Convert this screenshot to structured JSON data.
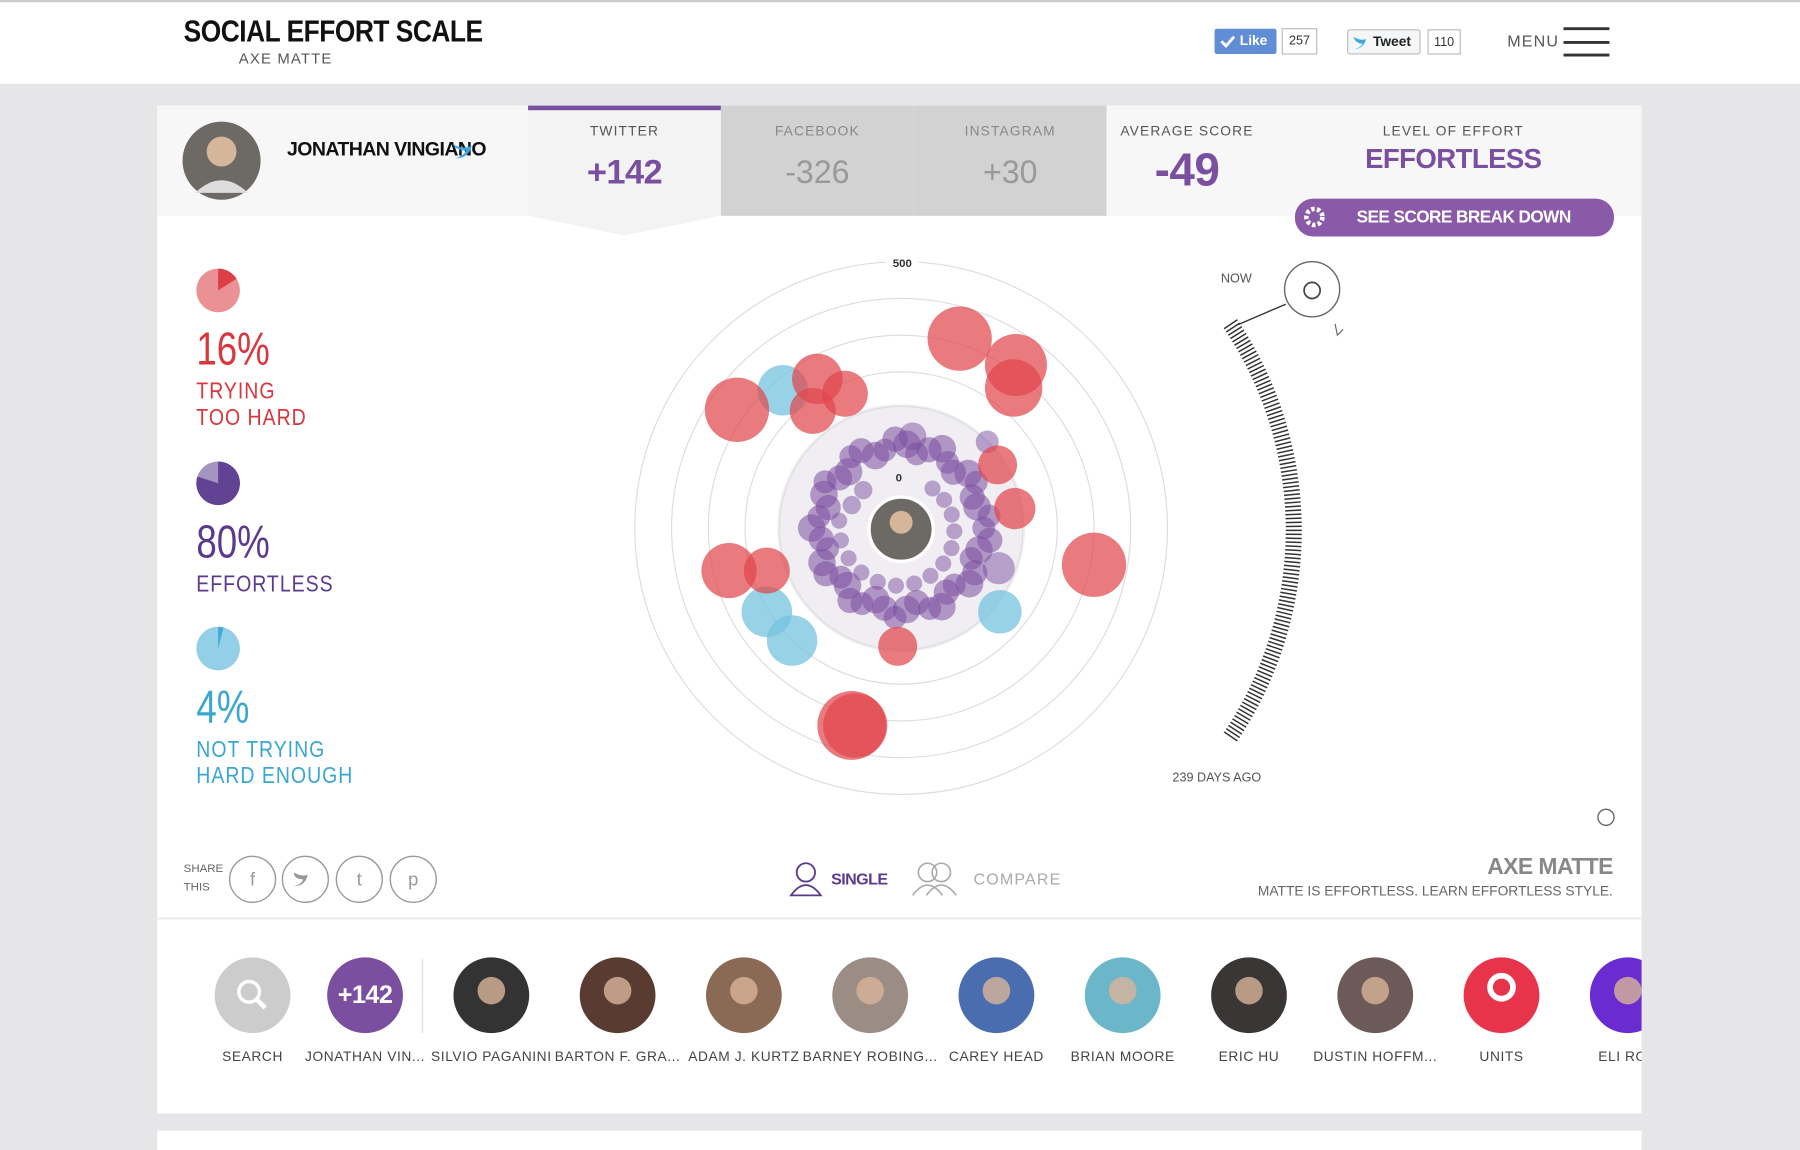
{
  "header": {
    "title": "SOCIAL EFFORT SCALE",
    "brand": "AXE MATTE",
    "like": "Like",
    "like_count": "257",
    "tweet": "Tweet",
    "tweet_count": "110",
    "menu": "MENU"
  },
  "profile": {
    "name": "JONATHAN VINGIANO"
  },
  "tabs": [
    {
      "label": "TWITTER",
      "score": "+142"
    },
    {
      "label": "FACEBOOK",
      "score": "-326"
    },
    {
      "label": "INSTAGRAM",
      "score": "+30"
    }
  ],
  "average": {
    "label": "AVERAGE SCORE",
    "score": "-49"
  },
  "level": {
    "label": "LEVEL OF EFFORT",
    "value": "EFFORTLESS",
    "button": "SEE SCORE BREAK DOWN"
  },
  "chart": {
    "outer_label": "500",
    "center_label": "0",
    "timeline_start": "NOW",
    "timeline_end": "239 DAYS AGO"
  },
  "breakdown": [
    {
      "percent": {
        "value": 16,
        "label": "16%"
      },
      "lines": [
        "TRYING",
        "TOO HARD"
      ],
      "color": "#d9363e"
    },
    {
      "percent": {
        "value": 80,
        "label": "80%"
      },
      "lines": [
        "EFFORTLESS"
      ],
      "color": "#5b3a8e"
    },
    {
      "percent": {
        "value": 4,
        "label": "4%"
      },
      "lines": [
        "NOT TRYING",
        "HARD ENOUGH"
      ],
      "color": "#3aa7d2"
    }
  ],
  "share": {
    "label": [
      "SHARE",
      "THIS"
    ]
  },
  "modes": [
    "SINGLE",
    "COMPARE"
  ],
  "sponsor": {
    "brand": "AXE MATTE",
    "tagline": "MATTE IS EFFORTLESS. LEARN EFFORTLESS STYLE."
  },
  "people": [
    {
      "name": "SEARCH"
    },
    {
      "name": "JONATHAN VIN...",
      "badge": "+142"
    },
    {
      "name": "SILVIO PAGANINI"
    },
    {
      "name": "BARTON F. GRA..."
    },
    {
      "name": "ADAM J. KURTZ"
    },
    {
      "name": "BARNEY ROBING..."
    },
    {
      "name": "CAREY HEAD"
    },
    {
      "name": "BRIAN MOORE"
    },
    {
      "name": "ERIC HU"
    },
    {
      "name": "DUSTIN HOFFM..."
    },
    {
      "name": "UNITS"
    },
    {
      "name": "ELI ROU"
    }
  ]
}
